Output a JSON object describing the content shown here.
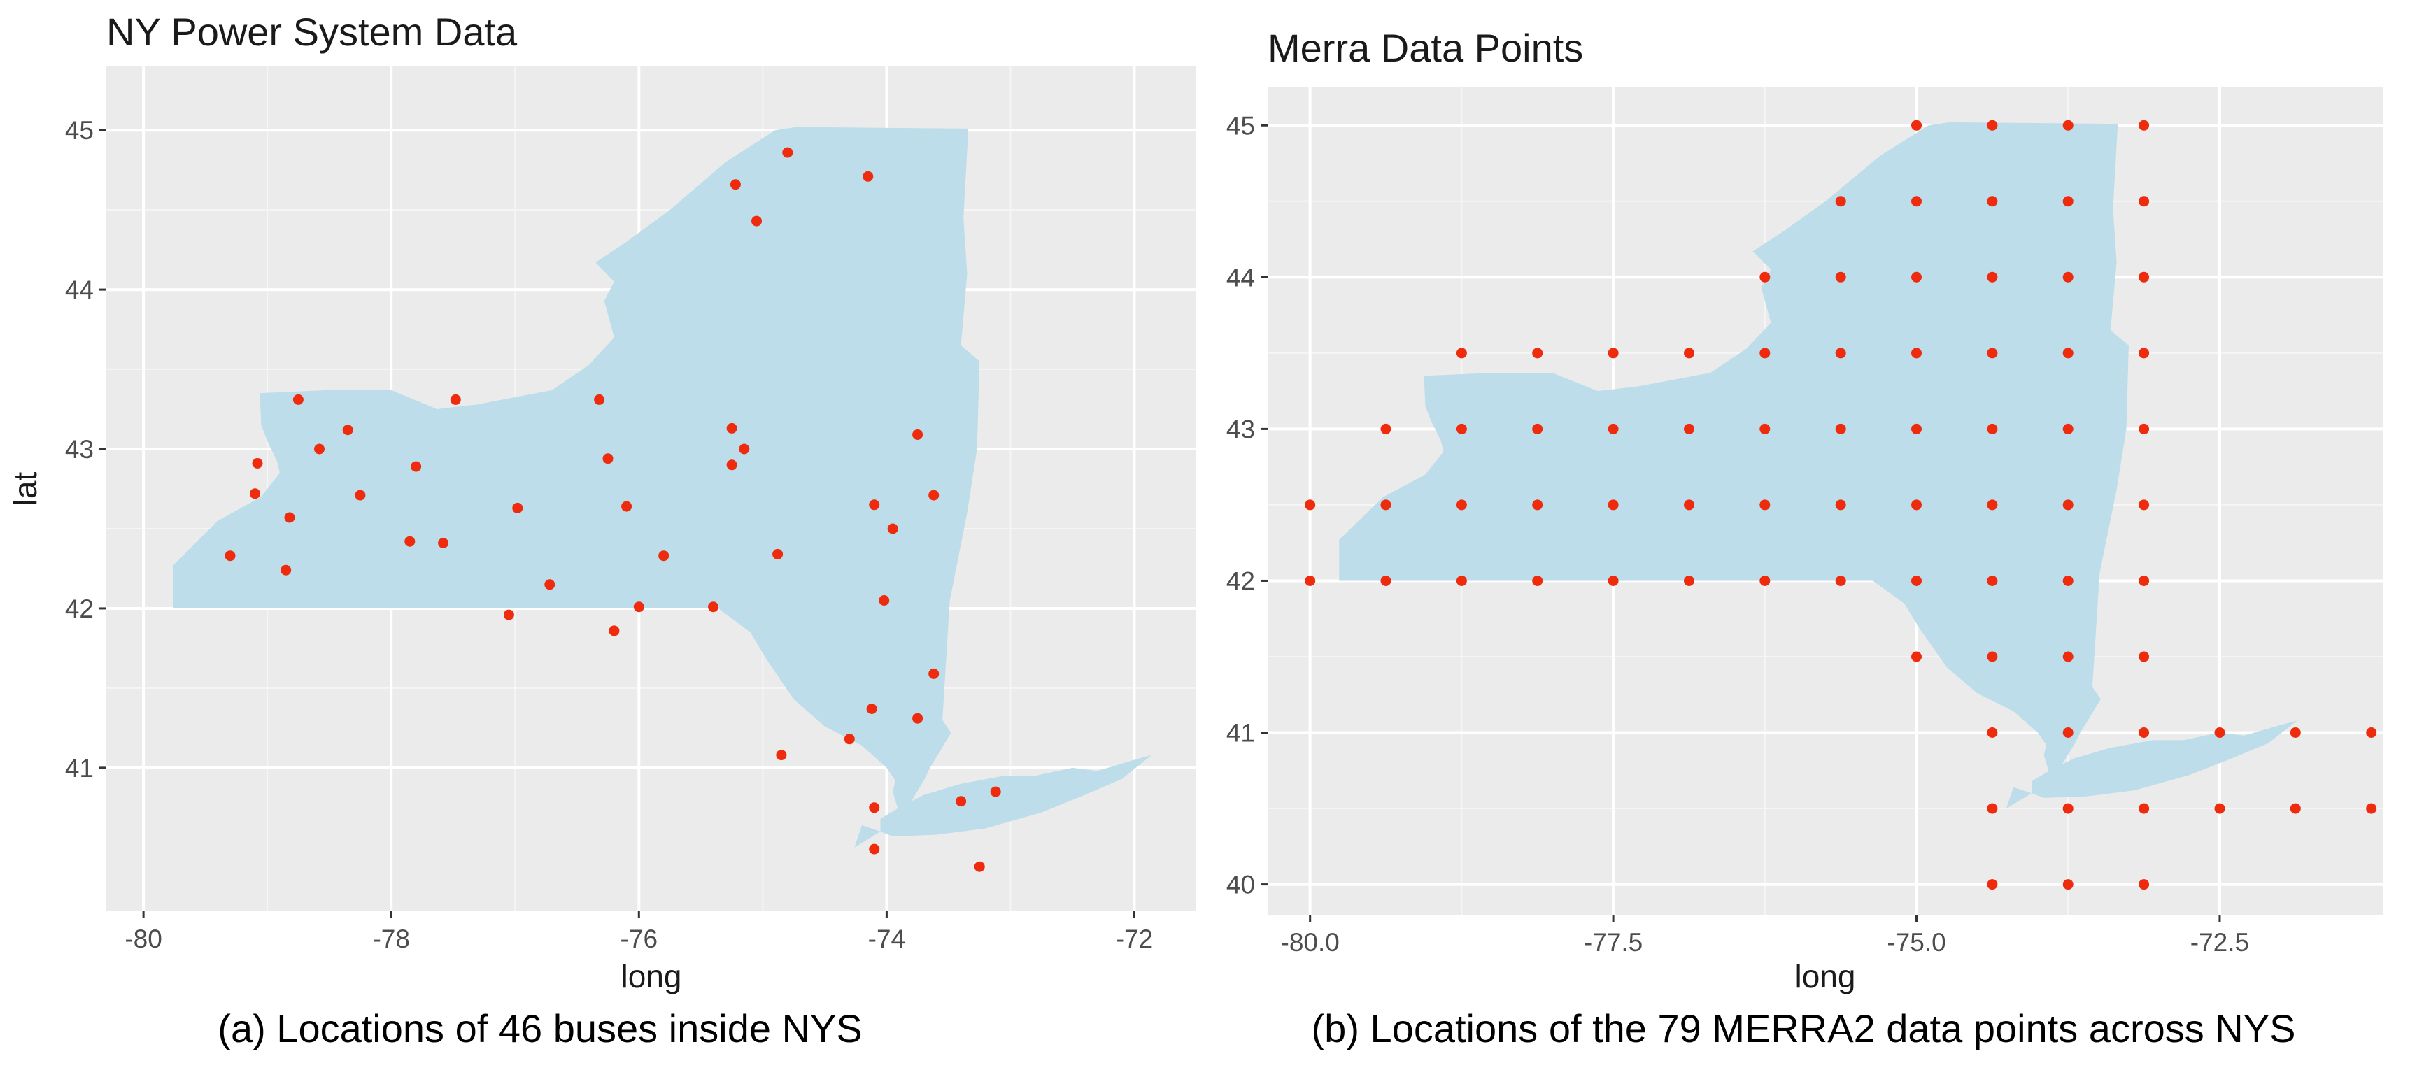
{
  "captions": {
    "a": "(a) Locations of 46 buses inside NYS",
    "b": "(b) Locations of the 79 MERRA2 data points across NYS"
  },
  "chart_data": [
    {
      "type": "scatter",
      "title": "NY Power System Data",
      "xlabel": "long",
      "ylabel": "lat",
      "xlim": [
        -80.3,
        -71.5
      ],
      "ylim": [
        40.1,
        45.4
      ],
      "x_ticks": [
        -80,
        -78,
        -76,
        -74,
        -72
      ],
      "x_tick_labels": [
        "-80",
        "-78",
        "-76",
        "-74",
        "-72"
      ],
      "y_ticks": [
        41,
        42,
        43,
        44,
        45
      ],
      "y_tick_labels": [
        "41",
        "42",
        "43",
        "44",
        "45"
      ],
      "grid": true,
      "background": "#ebebeb",
      "map_fill": "#bcdde9",
      "point_color": "#ee2b0c",
      "series": [
        {
          "points": [
            [
              -79.3,
              42.33
            ],
            [
              -79.1,
              42.72
            ],
            [
              -79.08,
              42.91
            ],
            [
              -78.85,
              42.24
            ],
            [
              -78.82,
              42.57
            ],
            [
              -78.75,
              43.31
            ],
            [
              -78.58,
              43.0
            ],
            [
              -78.35,
              43.12
            ],
            [
              -78.25,
              42.71
            ],
            [
              -77.85,
              42.42
            ],
            [
              -77.8,
              42.89
            ],
            [
              -77.58,
              42.41
            ],
            [
              -77.48,
              43.31
            ],
            [
              -77.05,
              41.96
            ],
            [
              -76.98,
              42.63
            ],
            [
              -76.72,
              42.15
            ],
            [
              -76.32,
              43.31
            ],
            [
              -76.25,
              42.94
            ],
            [
              -76.2,
              41.86
            ],
            [
              -76.1,
              42.64
            ],
            [
              -76.0,
              42.01
            ],
            [
              -75.8,
              42.33
            ],
            [
              -75.4,
              42.01
            ],
            [
              -75.25,
              43.13
            ],
            [
              -75.25,
              42.9
            ],
            [
              -75.22,
              44.66
            ],
            [
              -75.15,
              43.0
            ],
            [
              -75.05,
              44.43
            ],
            [
              -74.88,
              42.34
            ],
            [
              -74.85,
              41.08
            ],
            [
              -74.8,
              44.86
            ],
            [
              -74.3,
              41.18
            ],
            [
              -74.15,
              44.71
            ],
            [
              -74.12,
              41.37
            ],
            [
              -74.1,
              42.65
            ],
            [
              -74.1,
              40.75
            ],
            [
              -74.1,
              40.49
            ],
            [
              -74.02,
              42.05
            ],
            [
              -73.95,
              42.5
            ],
            [
              -73.75,
              43.09
            ],
            [
              -73.75,
              41.31
            ],
            [
              -73.62,
              42.71
            ],
            [
              -73.62,
              41.59
            ],
            [
              -73.4,
              40.79
            ],
            [
              -73.25,
              40.38
            ],
            [
              -73.12,
              40.85
            ]
          ]
        }
      ]
    },
    {
      "type": "scatter",
      "title": "Merra Data Points",
      "xlabel": "long",
      "ylabel": "",
      "xlim": [
        -80.35,
        -71.15
      ],
      "ylim": [
        39.8,
        45.25
      ],
      "x_ticks": [
        -80.0,
        -77.5,
        -75.0,
        -72.5
      ],
      "x_tick_labels": [
        "-80.0",
        "-77.5",
        "-75.0",
        "-72.5"
      ],
      "y_ticks": [
        40,
        41,
        42,
        43,
        44,
        45
      ],
      "y_tick_labels": [
        "40",
        "41",
        "42",
        "43",
        "44",
        "45"
      ],
      "grid": true,
      "background": "#ebebeb",
      "map_fill": "#bcdde9",
      "point_color": "#ee2b0c",
      "series": [
        {
          "points": [
            [
              -75.0,
              45.0
            ],
            [
              -74.375,
              45.0
            ],
            [
              -73.75,
              45.0
            ],
            [
              -73.125,
              45.0
            ],
            [
              -75.625,
              44.5
            ],
            [
              -75.0,
              44.5
            ],
            [
              -74.375,
              44.5
            ],
            [
              -73.75,
              44.5
            ],
            [
              -73.125,
              44.5
            ],
            [
              -76.25,
              44.0
            ],
            [
              -75.625,
              44.0
            ],
            [
              -75.0,
              44.0
            ],
            [
              -74.375,
              44.0
            ],
            [
              -73.75,
              44.0
            ],
            [
              -73.125,
              44.0
            ],
            [
              -78.75,
              43.5
            ],
            [
              -78.125,
              43.5
            ],
            [
              -77.5,
              43.5
            ],
            [
              -76.875,
              43.5
            ],
            [
              -76.25,
              43.5
            ],
            [
              -75.625,
              43.5
            ],
            [
              -75.0,
              43.5
            ],
            [
              -74.375,
              43.5
            ],
            [
              -73.75,
              43.5
            ],
            [
              -73.125,
              43.5
            ],
            [
              -79.375,
              43.0
            ],
            [
              -78.75,
              43.0
            ],
            [
              -78.125,
              43.0
            ],
            [
              -77.5,
              43.0
            ],
            [
              -76.875,
              43.0
            ],
            [
              -76.25,
              43.0
            ],
            [
              -75.625,
              43.0
            ],
            [
              -75.0,
              43.0
            ],
            [
              -74.375,
              43.0
            ],
            [
              -73.75,
              43.0
            ],
            [
              -73.125,
              43.0
            ],
            [
              -80.0,
              42.5
            ],
            [
              -79.375,
              42.5
            ],
            [
              -78.75,
              42.5
            ],
            [
              -78.125,
              42.5
            ],
            [
              -77.5,
              42.5
            ],
            [
              -76.875,
              42.5
            ],
            [
              -76.25,
              42.5
            ],
            [
              -75.625,
              42.5
            ],
            [
              -75.0,
              42.5
            ],
            [
              -74.375,
              42.5
            ],
            [
              -73.75,
              42.5
            ],
            [
              -73.125,
              42.5
            ],
            [
              -80.0,
              42.0
            ],
            [
              -79.375,
              42.0
            ],
            [
              -78.75,
              42.0
            ],
            [
              -78.125,
              42.0
            ],
            [
              -77.5,
              42.0
            ],
            [
              -76.875,
              42.0
            ],
            [
              -76.25,
              42.0
            ],
            [
              -75.625,
              42.0
            ],
            [
              -75.0,
              42.0
            ],
            [
              -74.375,
              42.0
            ],
            [
              -73.75,
              42.0
            ],
            [
              -73.125,
              42.0
            ],
            [
              -75.0,
              41.5
            ],
            [
              -74.375,
              41.5
            ],
            [
              -73.75,
              41.5
            ],
            [
              -73.125,
              41.5
            ],
            [
              -74.375,
              41.0
            ],
            [
              -73.75,
              41.0
            ],
            [
              -73.125,
              41.0
            ],
            [
              -72.5,
              41.0
            ],
            [
              -71.875,
              41.0
            ],
            [
              -71.25,
              41.0
            ],
            [
              -74.375,
              40.5
            ],
            [
              -73.75,
              40.5
            ],
            [
              -73.125,
              40.5
            ],
            [
              -72.5,
              40.5
            ],
            [
              -71.875,
              40.5
            ],
            [
              -71.25,
              40.5
            ],
            [
              -74.375,
              40.0
            ],
            [
              -73.75,
              40.0
            ],
            [
              -73.125,
              40.0
            ]
          ]
        }
      ]
    }
  ]
}
